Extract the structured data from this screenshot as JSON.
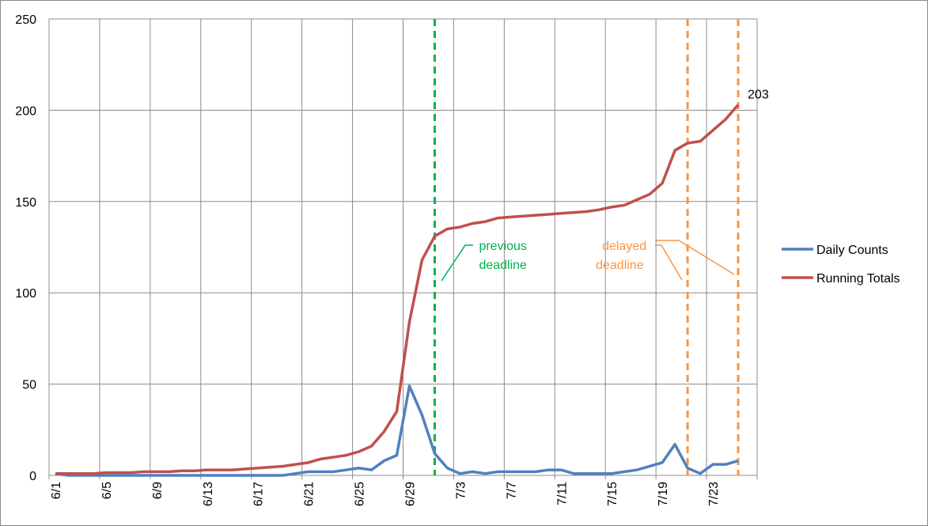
{
  "chart_data": {
    "type": "line",
    "categories": [
      "6/1",
      null,
      null,
      null,
      "6/5",
      null,
      null,
      null,
      "6/9",
      null,
      null,
      null,
      "6/13",
      null,
      null,
      null,
      "6/17",
      null,
      null,
      null,
      "6/21",
      null,
      null,
      null,
      "6/25",
      null,
      null,
      null,
      "6/29",
      null,
      null,
      null,
      "7/3",
      null,
      null,
      null,
      "7/7",
      null,
      null,
      null,
      "7/11",
      null,
      null,
      null,
      "7/15",
      null,
      null,
      null,
      "7/19",
      null,
      null,
      null,
      "7/23",
      null,
      null,
      null
    ],
    "series": [
      {
        "name": "Daily Counts",
        "color": "#4f81bd",
        "values": [
          1,
          0,
          0,
          0,
          0,
          0,
          0,
          0,
          0,
          0,
          0,
          0,
          0,
          0,
          0,
          0,
          0,
          0,
          0,
          1,
          2,
          2,
          2,
          3,
          4,
          3,
          8,
          11,
          49,
          33,
          12,
          4,
          1,
          2,
          1,
          2,
          2,
          2,
          2,
          3,
          3,
          1,
          1,
          1,
          1,
          2,
          3,
          5,
          7,
          17,
          4,
          1,
          6,
          6,
          8,
          null
        ]
      },
      {
        "name": "Running Totals",
        "color": "#c0504d",
        "values": [
          1,
          1,
          1,
          1,
          1.5,
          1.5,
          1.5,
          2,
          2,
          2,
          2.5,
          2.5,
          3,
          3,
          3,
          3.5,
          4,
          4.5,
          5,
          6,
          7,
          9,
          10,
          11,
          13,
          16,
          24,
          35,
          84,
          118,
          131,
          135,
          136,
          138,
          139,
          141,
          141.5,
          142,
          142.5,
          143,
          143.5,
          144,
          144.5,
          145.5,
          147,
          148,
          151,
          154,
          160,
          178,
          182,
          183,
          189,
          195,
          203,
          null
        ],
        "value_labels": {
          "54": "203"
        },
        "label_color": "#7f0033"
      }
    ],
    "ylim": [
      0,
      250
    ],
    "yticks": [
      0,
      50,
      100,
      150,
      200,
      250
    ],
    "grid": true,
    "legend": "right",
    "vlines": [
      {
        "index": 30,
        "color": "#00b050",
        "label": "previous\ndeadline"
      },
      {
        "index": 50,
        "color": "#f79646",
        "label": "delayed\ndeadline"
      },
      {
        "index": 54,
        "color": "#f79646"
      }
    ]
  }
}
